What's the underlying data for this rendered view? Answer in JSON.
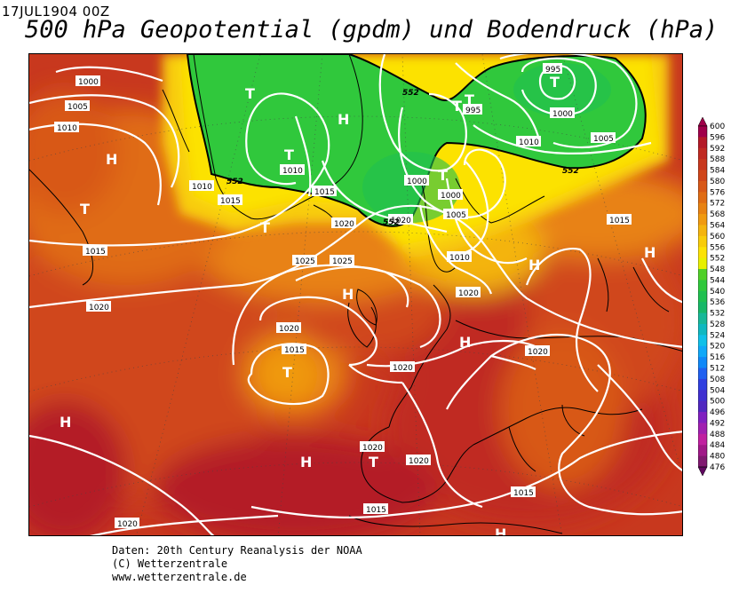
{
  "header": {
    "date": "17JUL1904 00Z",
    "title": "500 hPa Geopotential (gpdm) und Bodendruck (hPa)"
  },
  "legend": {
    "levels": [
      600,
      596,
      592,
      588,
      584,
      580,
      576,
      572,
      568,
      564,
      560,
      556,
      552,
      548,
      544,
      540,
      536,
      532,
      528,
      524,
      520,
      516,
      512,
      508,
      504,
      500,
      496,
      492,
      488,
      484,
      480,
      476
    ],
    "colors": [
      "#a0004a",
      "#b41a28",
      "#c02a22",
      "#c8381e",
      "#d0461a",
      "#d85818",
      "#e06c14",
      "#e88212",
      "#f09a10",
      "#f4b40e",
      "#f8cc0a",
      "#fce206",
      "#e8f000",
      "#50d028",
      "#30c83c",
      "#20c050",
      "#18b868",
      "#18b898",
      "#10b8c0",
      "#10c0e8",
      "#10a8f8",
      "#1088f8",
      "#2060f0",
      "#3040e0",
      "#4030d0",
      "#5028c0",
      "#8020c0",
      "#a020b0",
      "#c020a0",
      "#a01888",
      "#801870",
      "#600860"
    ]
  },
  "map": {
    "isobars": [
      "1000",
      "1005",
      "1010",
      "1015",
      "1020",
      "1025",
      "995",
      "995",
      "1000",
      "1010",
      "1005",
      "1010",
      "1015",
      "1020",
      "1020",
      "1025",
      "1020",
      "1015",
      "1020",
      "1020",
      "1020",
      "1015",
      "1015",
      "1020",
      "1005",
      "1000",
      "1010",
      "1015",
      "1010",
      "1000",
      "1020",
      "1020",
      "1015"
    ],
    "geopotential_labels": [
      "552",
      "552",
      "552",
      "552"
    ],
    "pressure_centers": [
      {
        "type": "H",
        "label": "H"
      },
      {
        "type": "T",
        "label": "T"
      },
      {
        "type": "T",
        "label": "T"
      },
      {
        "type": "T",
        "label": "T"
      },
      {
        "type": "H",
        "label": "H"
      },
      {
        "type": "T",
        "label": "T"
      },
      {
        "type": "T",
        "label": "T"
      },
      {
        "type": "T",
        "label": "T"
      },
      {
        "type": "T",
        "label": "T"
      },
      {
        "type": "H",
        "label": "H"
      },
      {
        "type": "H",
        "label": "H"
      },
      {
        "type": "H",
        "label": "H"
      },
      {
        "type": "H",
        "label": "H"
      },
      {
        "type": "T",
        "label": "T"
      },
      {
        "type": "H",
        "label": "H"
      },
      {
        "type": "H",
        "label": "H"
      },
      {
        "type": "T",
        "label": "T"
      },
      {
        "type": "H",
        "label": "H"
      },
      {
        "type": "T",
        "label": "T"
      }
    ]
  },
  "credits": {
    "line1": "Daten: 20th Century Reanalysis der NOAA",
    "line2": "(C) Wetterzentrale",
    "line3": "www.wetterzentrale.de"
  }
}
